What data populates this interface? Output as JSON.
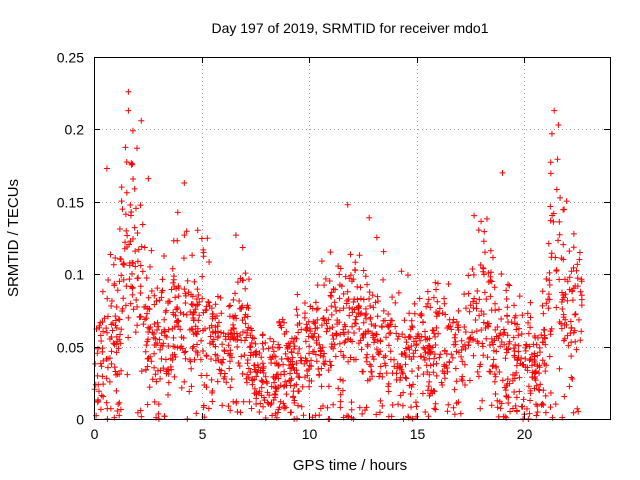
{
  "chart_data": {
    "type": "scatter",
    "title": "Day 197 of 2019, SRMTID for receiver mdo1",
    "xlabel": "GPS time / hours",
    "ylabel": "SRMTID / TECUs",
    "xlim": [
      0,
      24
    ],
    "ylim": [
      0,
      0.25
    ],
    "x_ticks": [
      0,
      5,
      10,
      15,
      20
    ],
    "x_tick_labels": [
      "0",
      "5",
      "10",
      "15",
      "20"
    ],
    "y_ticks": [
      0,
      0.05,
      0.1,
      0.15,
      0.2,
      0.25
    ],
    "y_tick_labels": [
      "0",
      "0.05",
      "0.1",
      "0.15",
      "0.2",
      "0.25"
    ],
    "grid": true,
    "marker": "+",
    "color": "#ff0000",
    "data_extent_hours": [
      0,
      22.7
    ],
    "activity_profile": [
      [
        0.0,
        0.035,
        0.02
      ],
      [
        0.5,
        0.04,
        0.025
      ],
      [
        1.0,
        0.06,
        0.035
      ],
      [
        1.5,
        0.1,
        0.05
      ],
      [
        1.8,
        0.13,
        0.06
      ],
      [
        2.2,
        0.08,
        0.04
      ],
      [
        2.8,
        0.055,
        0.03
      ],
      [
        3.5,
        0.06,
        0.03
      ],
      [
        4.2,
        0.08,
        0.04
      ],
      [
        4.6,
        0.065,
        0.035
      ],
      [
        5.2,
        0.07,
        0.035
      ],
      [
        5.8,
        0.045,
        0.025
      ],
      [
        6.5,
        0.055,
        0.03
      ],
      [
        6.9,
        0.07,
        0.035
      ],
      [
        7.5,
        0.035,
        0.02
      ],
      [
        8.5,
        0.03,
        0.02
      ],
      [
        9.5,
        0.045,
        0.025
      ],
      [
        10.5,
        0.05,
        0.03
      ],
      [
        11.5,
        0.065,
        0.035
      ],
      [
        12.0,
        0.07,
        0.035
      ],
      [
        12.8,
        0.06,
        0.03
      ],
      [
        13.5,
        0.055,
        0.03
      ],
      [
        14.5,
        0.045,
        0.025
      ],
      [
        15.5,
        0.05,
        0.025
      ],
      [
        16.5,
        0.045,
        0.025
      ],
      [
        17.5,
        0.06,
        0.03
      ],
      [
        18.2,
        0.085,
        0.045
      ],
      [
        18.7,
        0.05,
        0.03
      ],
      [
        19.3,
        0.045,
        0.03
      ],
      [
        20.0,
        0.04,
        0.025
      ],
      [
        20.6,
        0.035,
        0.02
      ],
      [
        21.0,
        0.06,
        0.03
      ],
      [
        21.4,
        0.13,
        0.05
      ],
      [
        21.8,
        0.08,
        0.04
      ],
      [
        22.3,
        0.075,
        0.035
      ],
      [
        22.7,
        0.08,
        0.035
      ]
    ],
    "notable_points": [
      {
        "x": 1.6,
        "y": 0.226
      },
      {
        "x": 1.6,
        "y": 0.213
      },
      {
        "x": 2.2,
        "y": 0.206
      },
      {
        "x": 21.6,
        "y": 0.203
      },
      {
        "x": 21.3,
        "y": 0.197
      },
      {
        "x": 2.0,
        "y": 0.187
      },
      {
        "x": 0.6,
        "y": 0.173
      },
      {
        "x": 19.0,
        "y": 0.17
      },
      {
        "x": 4.2,
        "y": 0.163
      },
      {
        "x": 11.8,
        "y": 0.148
      },
      {
        "x": 12.8,
        "y": 0.139
      },
      {
        "x": 6.6,
        "y": 0.127
      },
      {
        "x": 10.6,
        "y": 0.109
      },
      {
        "x": 14.3,
        "y": 0.102
      },
      {
        "x": 22.6,
        "y": 0.115
      }
    ]
  }
}
